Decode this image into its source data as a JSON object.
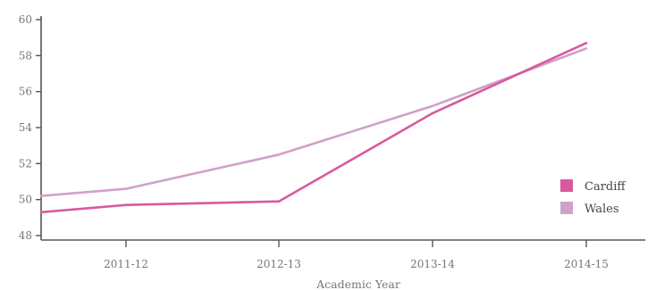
{
  "chart_data": {
    "type": "line",
    "categories": [
      "2011-12",
      "2012-13",
      "2013-14",
      "2014-15"
    ],
    "x_extended": [
      "",
      "2011-12",
      "2012-13",
      "2013-14",
      "2014-15"
    ],
    "series": [
      {
        "name": "Cardiff",
        "color": "#d85a9c",
        "start_value": 49.3,
        "values": [
          49.7,
          49.9,
          54.8,
          58.7
        ]
      },
      {
        "name": "Wales",
        "color": "#cfa1c8",
        "start_value": 50.2,
        "values": [
          50.6,
          52.5,
          55.2,
          58.4
        ]
      }
    ],
    "title": "",
    "xlabel": "Academic Year",
    "ylabel": "",
    "ylim": [
      48,
      60
    ],
    "yticks": [
      48,
      50,
      52,
      54,
      56,
      58,
      60
    ],
    "grid": false,
    "legend_position": "bottom-right"
  }
}
